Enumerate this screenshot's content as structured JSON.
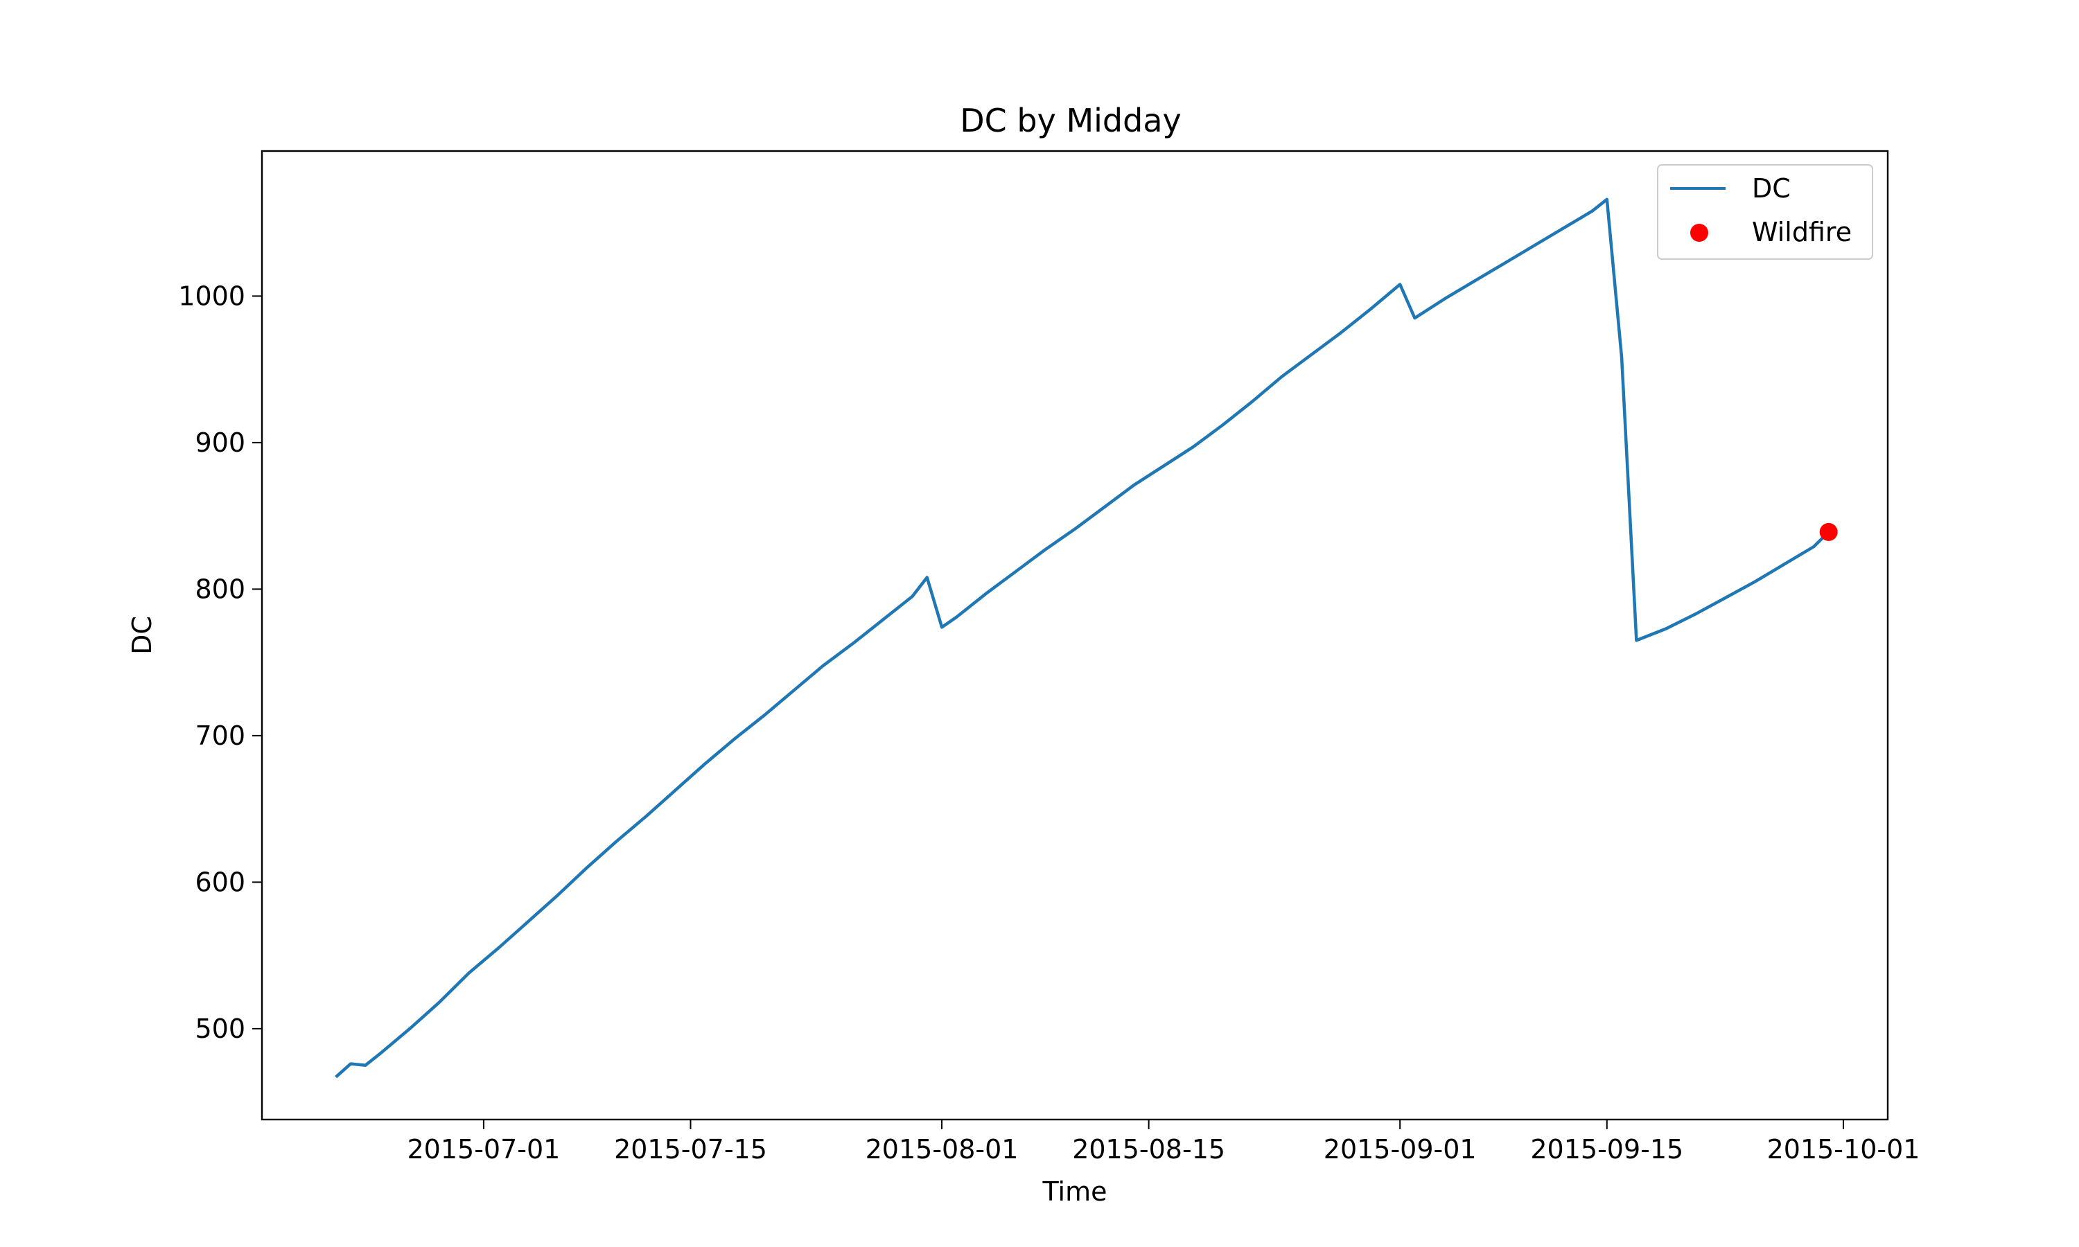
{
  "chart_data": {
    "type": "line",
    "title": "DC by Midday",
    "xlabel": "Time",
    "ylabel": "DC",
    "x_range": [
      "2015-06-16",
      "2015-10-04"
    ],
    "ylim": [
      438,
      1099
    ],
    "x_ticks": [
      "2015-07-01",
      "2015-07-15",
      "2015-08-01",
      "2015-08-15",
      "2015-09-01",
      "2015-09-15",
      "2015-10-01"
    ],
    "y_ticks": [
      500,
      600,
      700,
      800,
      900,
      1000
    ],
    "grid": false,
    "legend_position": "top-right",
    "series": [
      {
        "name": "DC",
        "kind": "line",
        "color": "#1f77b4",
        "points": [
          [
            "2015-06-21",
            467
          ],
          [
            "2015-06-22",
            476
          ],
          [
            "2015-06-23",
            475
          ],
          [
            "2015-06-24",
            483
          ],
          [
            "2015-06-26",
            500
          ],
          [
            "2015-06-28",
            518
          ],
          [
            "2015-06-30",
            538
          ],
          [
            "2015-07-02",
            555
          ],
          [
            "2015-07-04",
            573
          ],
          [
            "2015-07-06",
            591
          ],
          [
            "2015-07-08",
            610
          ],
          [
            "2015-07-10",
            628
          ],
          [
            "2015-07-12",
            645
          ],
          [
            "2015-07-14",
            663
          ],
          [
            "2015-07-16",
            681
          ],
          [
            "2015-07-18",
            698
          ],
          [
            "2015-07-20",
            714
          ],
          [
            "2015-07-22",
            731
          ],
          [
            "2015-07-24",
            748
          ],
          [
            "2015-07-26",
            763
          ],
          [
            "2015-07-28",
            779
          ],
          [
            "2015-07-30",
            795
          ],
          [
            "2015-07-31",
            808
          ],
          [
            "2015-08-01",
            774
          ],
          [
            "2015-08-02",
            781
          ],
          [
            "2015-08-04",
            797
          ],
          [
            "2015-08-06",
            812
          ],
          [
            "2015-08-08",
            827
          ],
          [
            "2015-08-10",
            841
          ],
          [
            "2015-08-12",
            856
          ],
          [
            "2015-08-14",
            871
          ],
          [
            "2015-08-16",
            884
          ],
          [
            "2015-08-18",
            897
          ],
          [
            "2015-08-20",
            912
          ],
          [
            "2015-08-22",
            928
          ],
          [
            "2015-08-24",
            945
          ],
          [
            "2015-08-26",
            960
          ],
          [
            "2015-08-28",
            975
          ],
          [
            "2015-08-30",
            991
          ],
          [
            "2015-09-01",
            1008
          ],
          [
            "2015-09-02",
            985
          ],
          [
            "2015-09-04",
            998
          ],
          [
            "2015-09-06",
            1010
          ],
          [
            "2015-09-08",
            1022
          ],
          [
            "2015-09-10",
            1034
          ],
          [
            "2015-09-12",
            1046
          ],
          [
            "2015-09-14",
            1058
          ],
          [
            "2015-09-15",
            1066
          ],
          [
            "2015-09-16",
            958
          ],
          [
            "2015-09-17",
            765
          ],
          [
            "2015-09-19",
            773
          ],
          [
            "2015-09-21",
            783
          ],
          [
            "2015-09-23",
            794
          ],
          [
            "2015-09-25",
            805
          ],
          [
            "2015-09-27",
            817
          ],
          [
            "2015-09-29",
            829
          ],
          [
            "2015-09-30",
            839
          ]
        ]
      },
      {
        "name": "Wildfire",
        "kind": "scatter",
        "color": "#ff0000",
        "points": [
          [
            "2015-09-30",
            839
          ]
        ]
      }
    ]
  }
}
